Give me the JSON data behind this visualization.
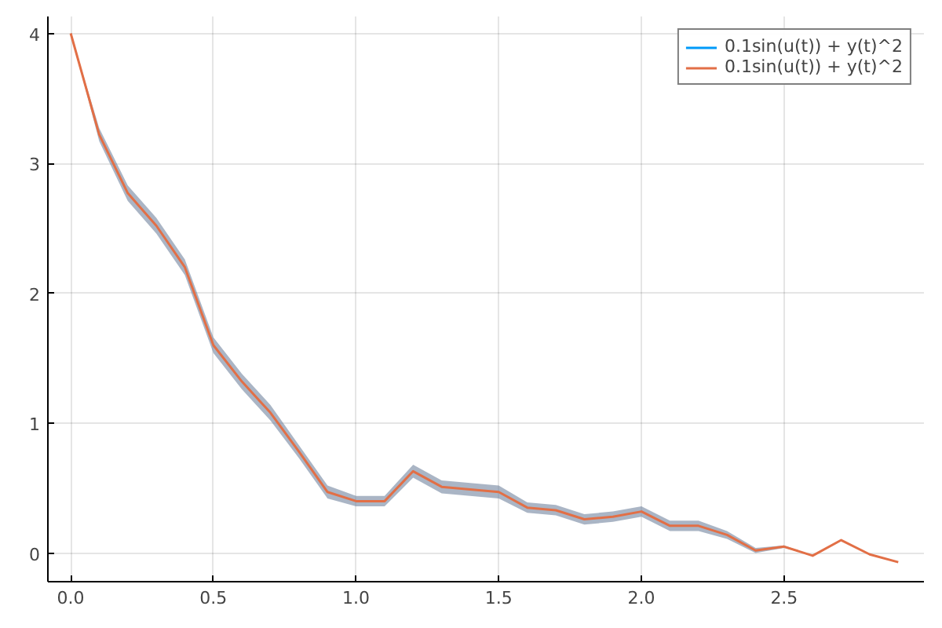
{
  "chart_data": {
    "type": "line",
    "x": [
      0,
      0.1,
      0.2,
      0.3,
      0.4,
      0.5,
      0.6,
      0.7,
      0.8,
      0.9,
      1.0,
      1.1,
      1.2,
      1.3,
      1.4,
      1.5,
      1.6,
      1.7,
      1.8,
      1.9,
      2.0,
      2.1,
      2.2,
      2.3,
      2.4,
      2.5,
      2.6,
      2.7,
      2.8,
      2.9
    ],
    "series": [
      {
        "name": "0.1sin(u(t)) + y(t)^2",
        "color": "#009af9",
        "values": [
          null,
          null,
          null,
          null,
          null,
          null,
          null,
          null,
          null,
          null,
          null,
          null,
          null,
          null,
          null,
          null,
          null,
          null,
          null,
          null,
          null,
          null,
          null,
          null,
          null,
          null,
          null,
          null,
          null,
          null
        ]
      },
      {
        "name": "0.1sin(u(t)) + y(t)^2",
        "color": "#e26f46",
        "values": [
          4.0,
          3.22,
          2.77,
          2.52,
          2.2,
          1.6,
          1.32,
          1.08,
          0.78,
          0.47,
          0.4,
          0.4,
          0.63,
          0.51,
          0.49,
          0.47,
          0.35,
          0.33,
          0.26,
          0.28,
          0.32,
          0.21,
          0.21,
          0.14,
          0.02,
          0.05,
          -0.02,
          0.1,
          -0.01,
          -0.07
        ],
        "lower": [
          4.0,
          3.17,
          2.71,
          2.46,
          2.14,
          1.54,
          1.26,
          1.02,
          0.73,
          0.42,
          0.36,
          0.36,
          0.58,
          0.46,
          0.44,
          0.42,
          0.31,
          0.29,
          0.22,
          0.24,
          0.28,
          0.17,
          0.17,
          0.11,
          0.0,
          0.04,
          -0.02,
          0.1,
          -0.01,
          -0.07
        ],
        "upper": [
          4.0,
          3.27,
          2.83,
          2.58,
          2.26,
          1.66,
          1.38,
          1.14,
          0.83,
          0.52,
          0.44,
          0.44,
          0.68,
          0.56,
          0.54,
          0.52,
          0.39,
          0.37,
          0.3,
          0.32,
          0.36,
          0.25,
          0.25,
          0.17,
          0.04,
          0.06,
          -0.02,
          0.1,
          -0.01,
          -0.07
        ]
      }
    ],
    "xlim": [
      -0.08,
      2.99
    ],
    "ylim": [
      -0.22,
      4.13
    ],
    "xticks": [
      {
        "value": 0,
        "label": "0.0"
      },
      {
        "value": 0.5,
        "label": "0.5"
      },
      {
        "value": 1,
        "label": "1.0"
      },
      {
        "value": 1.5,
        "label": "1.5"
      },
      {
        "value": 2,
        "label": "2.0"
      },
      {
        "value": 2.5,
        "label": "2.5"
      }
    ],
    "yticks": [
      0,
      1,
      2,
      3,
      4
    ],
    "grid": true,
    "legend": "top right"
  }
}
